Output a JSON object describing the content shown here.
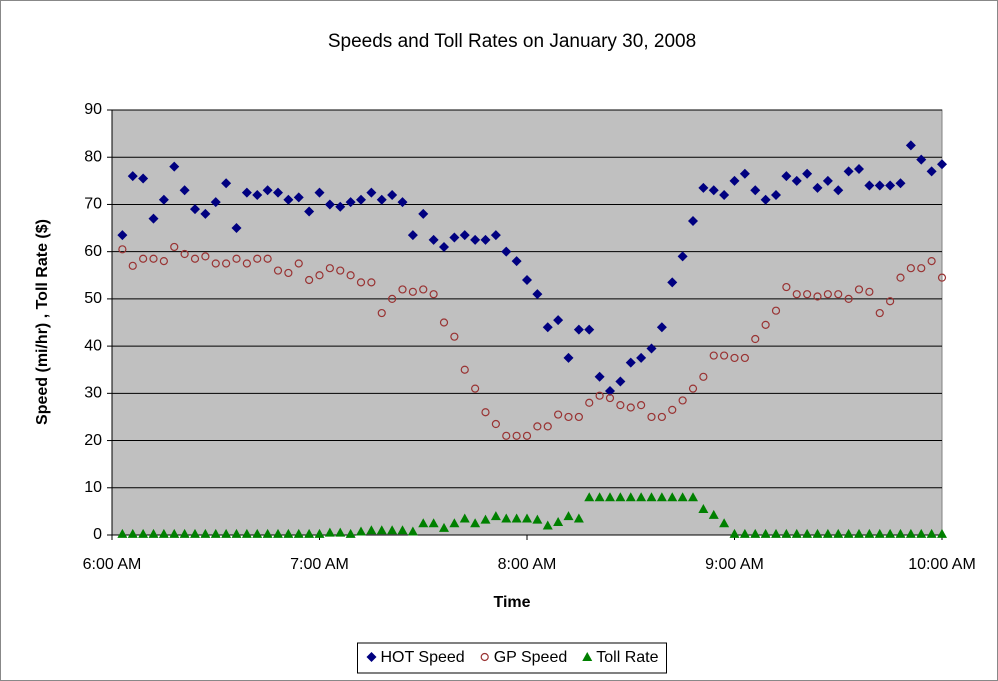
{
  "chart_data": {
    "type": "scatter",
    "title": "Speeds and Toll Rates on January 30, 2008",
    "x_label": "Time",
    "y_label": "Speed (mi/hr) , Toll Rate ($)",
    "x": [
      6.05,
      6.1,
      6.15,
      6.2,
      6.25,
      6.3,
      6.35,
      6.4,
      6.45,
      6.5,
      6.55,
      6.6,
      6.65,
      6.7,
      6.75,
      6.8,
      6.85,
      6.9,
      6.95,
      7,
      7.05,
      7.1,
      7.15,
      7.2,
      7.25,
      7.3,
      7.35,
      7.4,
      7.45,
      7.5,
      7.55,
      7.6,
      7.65,
      7.7,
      7.75,
      7.8,
      7.85,
      7.9,
      7.95,
      8,
      8.05,
      8.1,
      8.15,
      8.2,
      8.25,
      8.3,
      8.35,
      8.4,
      8.45,
      8.5,
      8.55,
      8.6,
      8.65,
      8.7,
      8.75,
      8.8,
      8.85,
      8.9,
      8.95,
      9,
      9.05,
      9.1,
      9.15,
      9.2,
      9.25,
      9.3,
      9.35,
      9.4,
      9.45,
      9.5,
      9.55,
      9.6,
      9.65,
      9.7,
      9.75,
      9.8,
      9.85,
      9.9,
      9.95,
      10
    ],
    "series": [
      {
        "name": "HOT Speed",
        "color": "#000080",
        "marker": "diamond",
        "values": [
          63.5,
          76,
          75.5,
          67,
          71,
          78,
          73,
          69,
          68,
          70.5,
          74.5,
          65,
          72.5,
          72,
          73,
          72.5,
          71,
          71.5,
          68.5,
          72.5,
          70,
          69.5,
          70.5,
          71,
          72.5,
          71,
          72,
          70.5,
          63.5,
          68,
          62.5,
          61,
          63,
          63.5,
          62.5,
          62.5,
          63.5,
          60,
          58,
          54,
          51,
          44,
          45.5,
          37.5,
          43.5,
          43.5,
          33.5,
          30.5,
          32.5,
          36.5,
          37.5,
          39.5,
          44,
          53.5,
          59,
          66.5,
          73.5,
          73,
          72,
          75,
          76.5,
          73,
          71,
          72,
          76,
          75,
          76.5,
          73.5,
          75,
          73,
          77,
          77.5,
          74,
          74,
          74,
          74.5,
          82.5,
          79.5,
          77,
          78.5
        ]
      },
      {
        "name": "GP Speed",
        "color": "#993333",
        "marker": "circle",
        "values": [
          60.5,
          57,
          58.5,
          58.5,
          58,
          61,
          59.5,
          58.5,
          59,
          57.5,
          57.5,
          58.5,
          57.5,
          58.5,
          58.5,
          56,
          55.5,
          57.5,
          54,
          55,
          56.5,
          56,
          55,
          53.5,
          53.5,
          47,
          50,
          52,
          51.5,
          52,
          51,
          45,
          42,
          35,
          31,
          26,
          23.5,
          21,
          21,
          21,
          23,
          23,
          25.5,
          25,
          25,
          28,
          29.5,
          29,
          27.5,
          27,
          27.5,
          25,
          25,
          26.5,
          28.5,
          31,
          33.5,
          38,
          38,
          37.5,
          37.5,
          41.5,
          44.5,
          47.5,
          52.5,
          51,
          51,
          50.5,
          51,
          51,
          50,
          52,
          51.5,
          47,
          49.5,
          54.5,
          56.5,
          56.5,
          58,
          54.5
        ]
      },
      {
        "name": "Toll Rate",
        "color": "#008000",
        "marker": "triangle",
        "values": [
          0.25,
          0.25,
          0.25,
          0.25,
          0.25,
          0.25,
          0.25,
          0.25,
          0.25,
          0.25,
          0.25,
          0.25,
          0.25,
          0.25,
          0.25,
          0.25,
          0.25,
          0.25,
          0.25,
          0.25,
          0.5,
          0.5,
          0.25,
          0.75,
          1,
          1,
          1,
          1,
          0.75,
          2.5,
          2.5,
          1.5,
          2.5,
          3.5,
          2.5,
          3.25,
          4,
          3.5,
          3.5,
          3.5,
          3.25,
          2,
          2.75,
          4,
          3.5,
          8,
          8,
          8,
          8,
          8,
          8,
          8,
          8,
          8,
          8,
          8,
          5.5,
          4.25,
          2.5,
          0.25,
          0.25,
          0.25,
          0.25,
          0.25,
          0.25,
          0.25,
          0.25,
          0.25,
          0.25,
          0.25,
          0.25,
          0.25,
          0.25,
          0.25,
          0.25,
          0.25,
          0.25,
          0.25,
          0.25,
          0.25
        ]
      }
    ],
    "xlim": [
      6,
      10
    ],
    "xticks": [
      {
        "value": 6,
        "label": "6:00 AM"
      },
      {
        "value": 7,
        "label": "7:00 AM"
      },
      {
        "value": 8,
        "label": "8:00 AM"
      },
      {
        "value": 9,
        "label": "9:00 AM"
      },
      {
        "value": 10,
        "label": "10:00 AM"
      }
    ],
    "ylim": [
      0,
      90
    ],
    "yticks": [
      0,
      10,
      20,
      30,
      40,
      50,
      60,
      70,
      80,
      90
    ],
    "grid": true,
    "legend": "bottom",
    "plot_background": "#c0c0c0"
  }
}
